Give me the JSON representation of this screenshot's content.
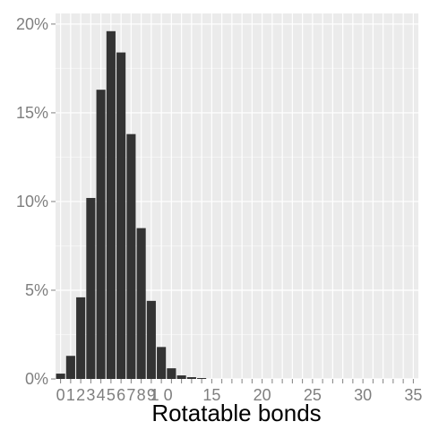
{
  "chart_data": {
    "type": "bar",
    "title": "",
    "xlabel": "Rotatable bonds",
    "ylabel": "",
    "x_label_suffix": "",
    "categories": [
      0,
      1,
      2,
      3,
      4,
      5,
      6,
      7,
      8,
      9,
      10,
      11,
      12,
      13,
      14,
      15,
      16,
      17,
      18,
      19,
      20,
      21,
      22,
      23,
      24,
      25,
      26,
      27,
      28,
      29,
      30,
      31,
      32,
      33,
      34,
      35
    ],
    "values": [
      0.003,
      0.013,
      0.046,
      0.102,
      0.163,
      0.196,
      0.184,
      0.138,
      0.085,
      0.044,
      0.018,
      0.006,
      0.002,
      0.001,
      0.0005,
      0,
      0,
      0,
      0,
      0,
      0,
      0,
      0,
      0,
      0,
      0,
      0,
      0,
      0,
      0,
      0,
      0,
      0,
      0,
      0,
      0
    ],
    "xlim": [
      -0.5,
      35.5
    ],
    "ylim": [
      0,
      0.206
    ],
    "x_ticks": [
      {
        "value": 0,
        "label": "0"
      },
      {
        "value": 1,
        "label": "1"
      },
      {
        "value": 2,
        "label": "2"
      },
      {
        "value": 3,
        "label": "3"
      },
      {
        "value": 4,
        "label": "4"
      },
      {
        "value": 5,
        "label": "5"
      },
      {
        "value": 6,
        "label": "6"
      },
      {
        "value": 7,
        "label": "7"
      },
      {
        "value": 8,
        "label": "8"
      },
      {
        "value": 9,
        "label": "9"
      },
      {
        "value": 10,
        "label": "1 0"
      },
      {
        "value": 15,
        "label": "15"
      },
      {
        "value": 20,
        "label": "20"
      },
      {
        "value": 25,
        "label": "25"
      },
      {
        "value": 30,
        "label": "30"
      },
      {
        "value": 35,
        "label": "35"
      }
    ],
    "minor_x_ticks": [
      11,
      12,
      13,
      14,
      16,
      17,
      18,
      19,
      21,
      22,
      23,
      24,
      26,
      27,
      28,
      29,
      31,
      32,
      33,
      34
    ],
    "y_ticks": [
      {
        "value": 0,
        "label": "0%"
      },
      {
        "value": 0.05,
        "label": "5%"
      },
      {
        "value": 0.1,
        "label": "10%"
      },
      {
        "value": 0.15,
        "label": "15%"
      },
      {
        "value": 0.2,
        "label": "20%"
      }
    ],
    "grid": true,
    "legend": "none",
    "colors": {
      "panel_background": "#ebebeb",
      "grid_major": "#ffffff",
      "grid_minor": "#f5f5f5",
      "bar_fill": "#333333",
      "tick_label": "#7f7f7f",
      "axis_title": "#000000",
      "tick_mark": "#7f7f7f"
    }
  }
}
